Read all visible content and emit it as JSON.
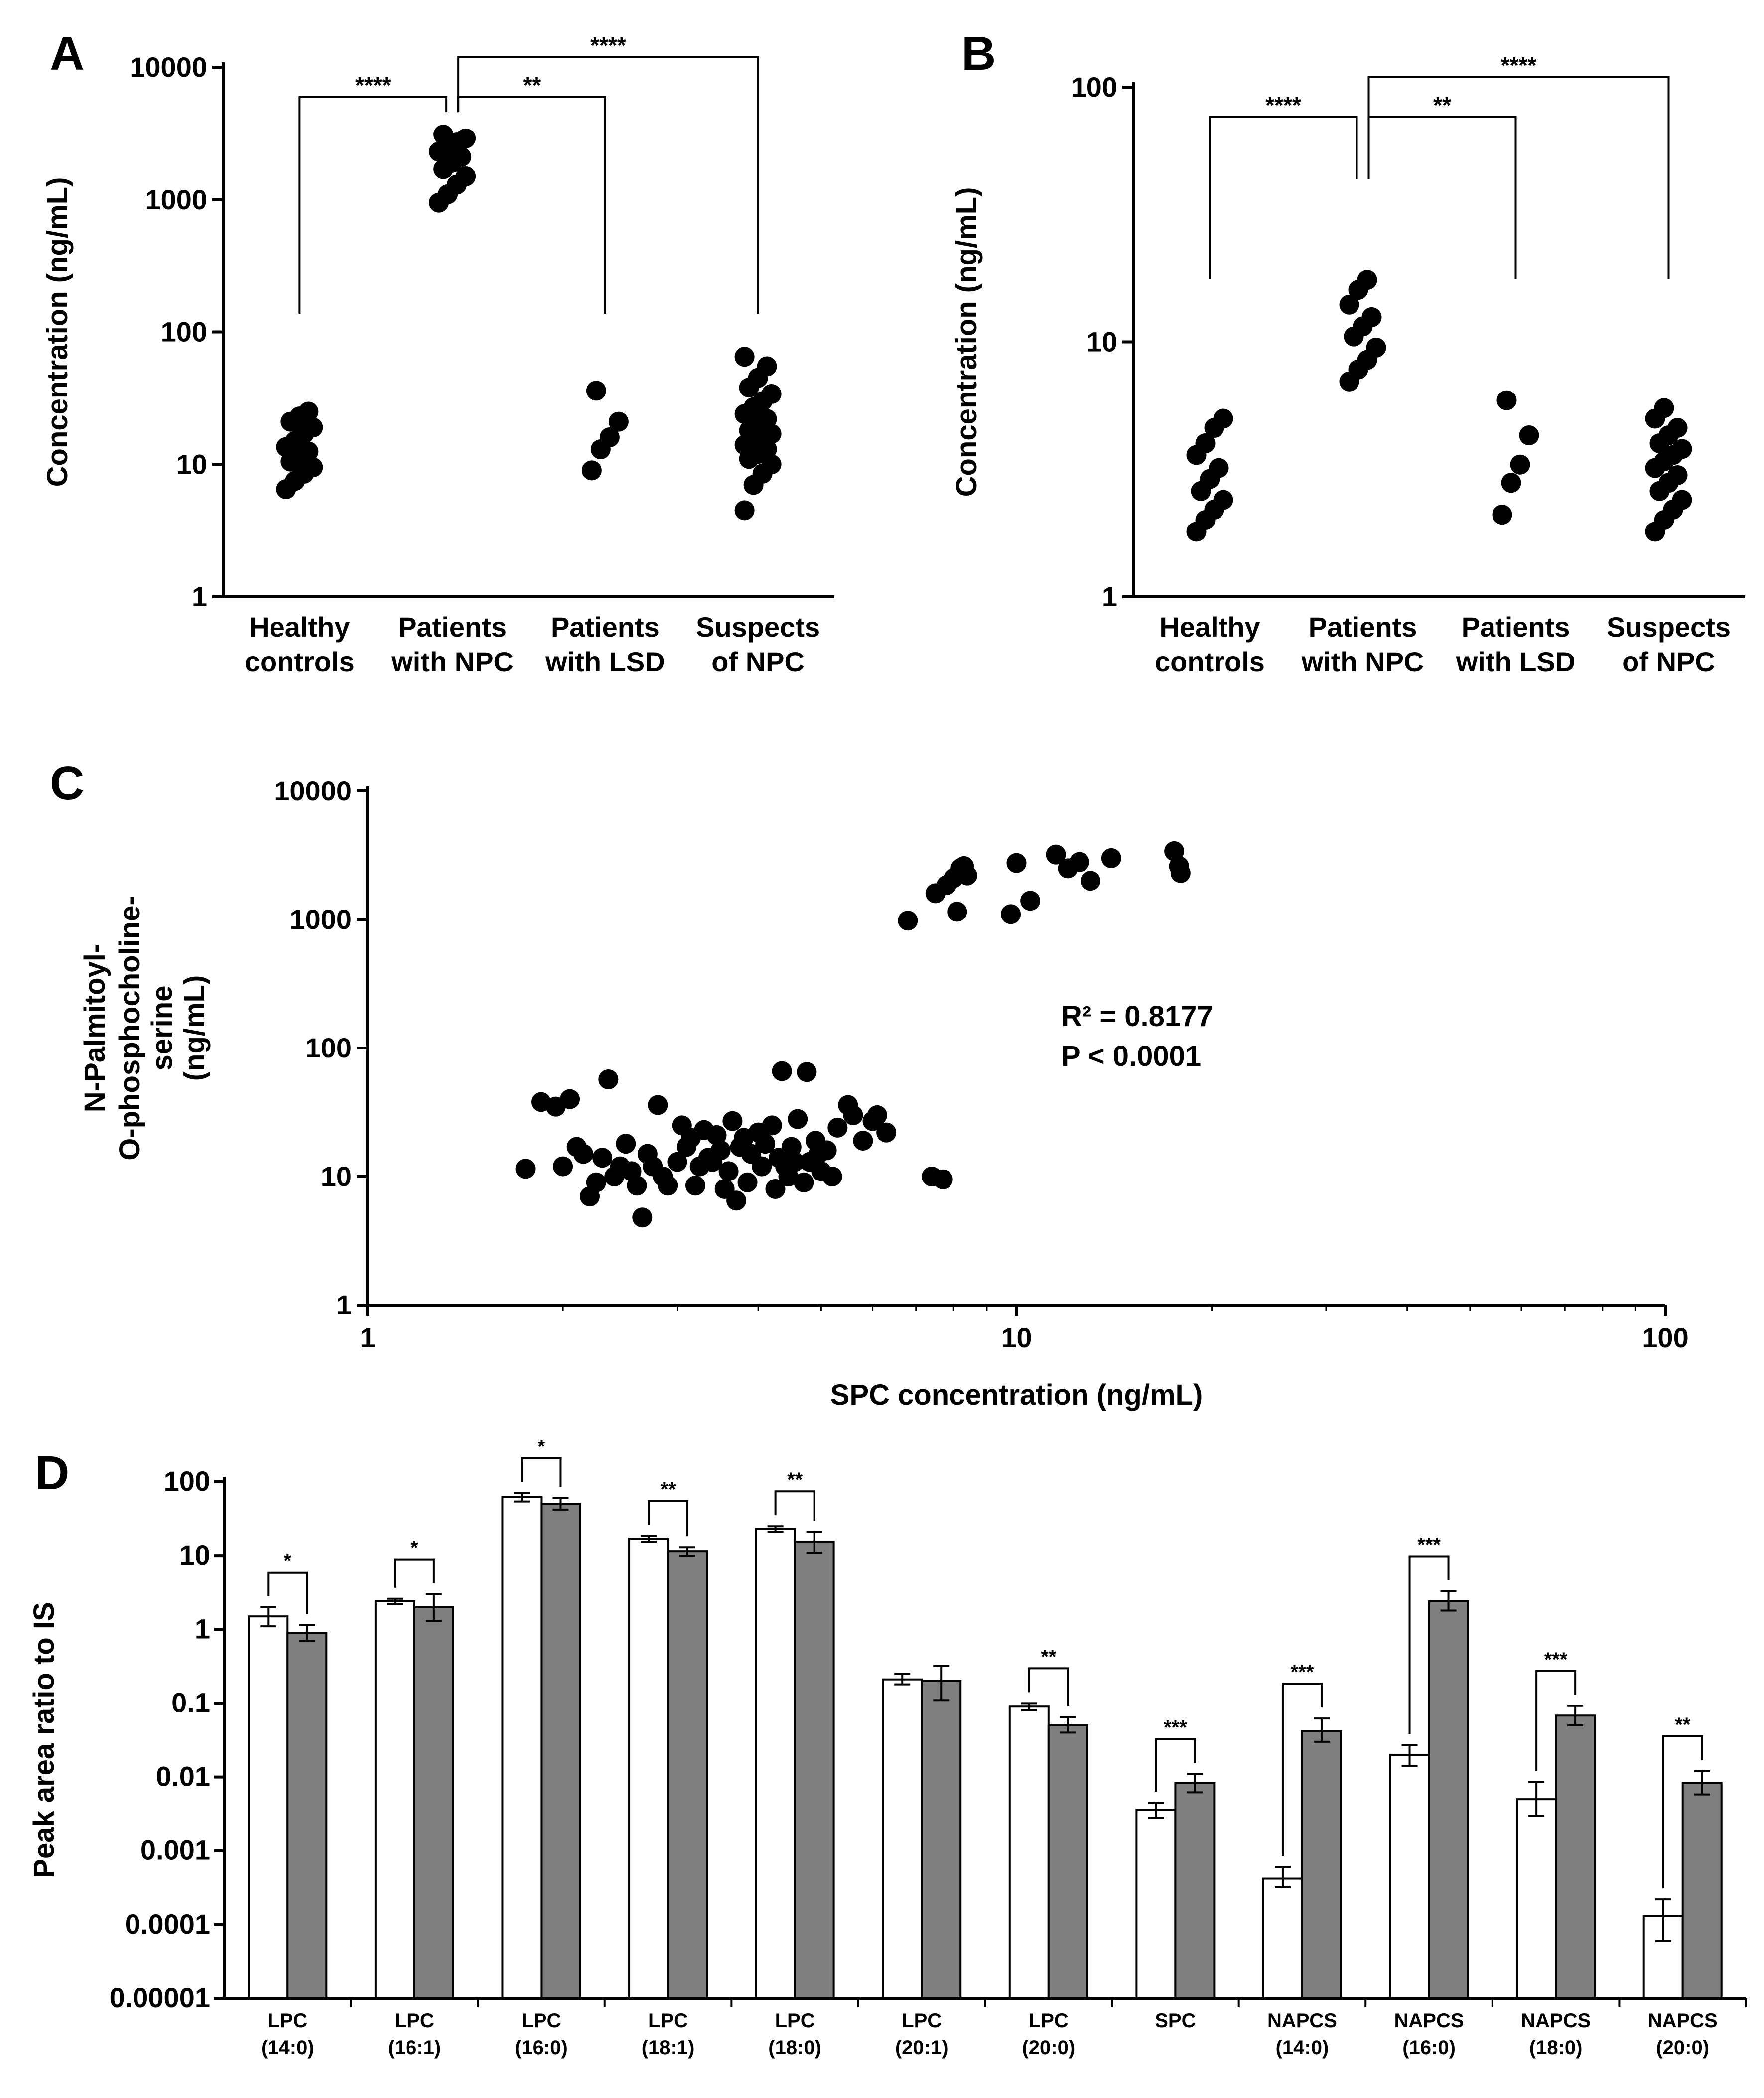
{
  "chart_data": [
    {
      "panel": "A",
      "type": "scatter",
      "ylabel": "Concentration (ng/mL)",
      "yscale": "log",
      "ylim": [
        1,
        10000
      ],
      "yticks": [
        "1",
        "10",
        "100",
        "1000",
        "10000"
      ],
      "categories": [
        [
          "Healthy",
          "controls"
        ],
        [
          "Patients",
          "with NPC"
        ],
        [
          "Patients",
          "with LSD"
        ],
        [
          "Suspects",
          "of NPC"
        ]
      ],
      "groups": [
        [
          6.5,
          7.5,
          8.5,
          9.5,
          10.5,
          11.5,
          12.5,
          13.5,
          15,
          17,
          19,
          21,
          23,
          25
        ],
        [
          950,
          1100,
          1300,
          1500,
          1700,
          1900,
          2100,
          2300,
          2500,
          2700,
          2900,
          3100
        ],
        [
          9,
          13,
          16,
          21,
          36
        ],
        [
          4.5,
          7,
          8.5,
          10,
          11,
          12,
          13,
          14,
          15,
          16,
          17,
          18,
          20,
          22,
          24,
          27,
          30,
          34,
          38,
          45,
          55,
          65
        ]
      ],
      "comparisons": [
        {
          "from": 0,
          "to": 1,
          "label": "****",
          "level": 0
        },
        {
          "from": 1,
          "to": 2,
          "label": "**",
          "level": 0
        },
        {
          "from": 1,
          "to": 3,
          "label": "****",
          "level": 1
        }
      ]
    },
    {
      "panel": "B",
      "type": "scatter",
      "ylabel": "Concentration (ng/mL)",
      "yscale": "log",
      "ylim": [
        1,
        100
      ],
      "yticks": [
        "1",
        "10",
        "100"
      ],
      "categories": [
        [
          "Healthy",
          "controls"
        ],
        [
          "Patients",
          "with NPC"
        ],
        [
          "Patients",
          "with LSD"
        ],
        [
          "Suspects",
          "of NPC"
        ]
      ],
      "groups": [
        [
          1.8,
          2.0,
          2.2,
          2.4,
          2.6,
          2.9,
          3.2,
          3.6,
          4.0,
          4.6,
          5.0
        ],
        [
          7.0,
          7.8,
          8.5,
          9.5,
          10.5,
          11.5,
          12.5,
          14,
          16,
          17.5
        ],
        [
          2.1,
          2.8,
          3.3,
          4.3,
          5.9
        ],
        [
          1.8,
          2.0,
          2.2,
          2.4,
          2.6,
          2.8,
          3.0,
          3.2,
          3.4,
          3.6,
          3.8,
          4.0,
          4.3,
          4.6,
          5.0,
          5.5
        ]
      ],
      "comparisons": [
        {
          "from": 0,
          "to": 1,
          "label": "****",
          "level": 0
        },
        {
          "from": 1,
          "to": 2,
          "label": "**",
          "level": 0
        },
        {
          "from": 1,
          "to": 3,
          "label": "****",
          "level": 1
        }
      ]
    },
    {
      "panel": "C",
      "type": "scatter",
      "xlabel": "SPC concentration (ng/mL)",
      "ylabel": [
        "N-Palmitoyl-",
        "O-phosphocholine-",
        "serine",
        "(ng/mL)"
      ],
      "xscale": "log",
      "yscale": "log",
      "xlim": [
        1,
        100
      ],
      "ylim": [
        1,
        10000
      ],
      "xticks": [
        "1",
        "10",
        "100"
      ],
      "yticks": [
        "1",
        "10",
        "100",
        "1000",
        "10000"
      ],
      "annotations": [
        "R² = 0.8177",
        "P < 0.0001"
      ],
      "points": [
        [
          1.75,
          11.5
        ],
        [
          1.85,
          38
        ],
        [
          1.95,
          35
        ],
        [
          2.0,
          12
        ],
        [
          2.05,
          40
        ],
        [
          2.1,
          17
        ],
        [
          2.15,
          15
        ],
        [
          2.2,
          7
        ],
        [
          2.3,
          14
        ],
        [
          2.35,
          57
        ],
        [
          2.4,
          10
        ],
        [
          2.45,
          12
        ],
        [
          2.5,
          18
        ],
        [
          2.55,
          11
        ],
        [
          2.6,
          8.5
        ],
        [
          2.65,
          4.8
        ],
        [
          2.7,
          15
        ],
        [
          2.75,
          12
        ],
        [
          2.8,
          36
        ],
        [
          2.85,
          10
        ],
        [
          2.9,
          8.5
        ],
        [
          3.0,
          13
        ],
        [
          3.1,
          17
        ],
        [
          3.2,
          8.5
        ],
        [
          3.3,
          23
        ],
        [
          3.4,
          13
        ],
        [
          3.5,
          16
        ],
        [
          3.6,
          11
        ],
        [
          3.7,
          6.5
        ],
        [
          3.8,
          20
        ],
        [
          3.9,
          15
        ],
        [
          4.0,
          22
        ],
        [
          4.1,
          18
        ],
        [
          4.2,
          25
        ],
        [
          4.3,
          14
        ],
        [
          4.4,
          12
        ],
        [
          4.5,
          17
        ],
        [
          4.6,
          28
        ],
        [
          4.7,
          9
        ],
        [
          4.8,
          13
        ],
        [
          4.9,
          19
        ],
        [
          5.0,
          11
        ],
        [
          5.1,
          16
        ],
        [
          5.2,
          10
        ],
        [
          3.05,
          25
        ],
        [
          3.25,
          12
        ],
        [
          3.45,
          21
        ],
        [
          3.65,
          27
        ],
        [
          3.85,
          9
        ],
        [
          4.05,
          12
        ],
        [
          4.25,
          8
        ],
        [
          4.35,
          66
        ],
        [
          4.45,
          10
        ],
        [
          4.55,
          13
        ],
        [
          4.75,
          65
        ],
        [
          4.95,
          15
        ],
        [
          5.3,
          24
        ],
        [
          5.5,
          36
        ],
        [
          5.6,
          30
        ],
        [
          5.8,
          19
        ],
        [
          6.0,
          27
        ],
        [
          6.1,
          30
        ],
        [
          6.3,
          22
        ],
        [
          7.4,
          10
        ],
        [
          7.7,
          9.5
        ],
        [
          3.15,
          20
        ],
        [
          3.35,
          14
        ],
        [
          3.55,
          8
        ],
        [
          2.25,
          9
        ],
        [
          3.75,
          17
        ],
        [
          6.8,
          980
        ],
        [
          7.5,
          1600
        ],
        [
          7.8,
          1850
        ],
        [
          8.0,
          2100
        ],
        [
          8.2,
          2500
        ],
        [
          8.3,
          2600
        ],
        [
          8.4,
          2200
        ],
        [
          8.1,
          1150
        ],
        [
          10.0,
          2750
        ],
        [
          10.5,
          1400
        ],
        [
          9.8,
          1100
        ],
        [
          11.5,
          3200
        ],
        [
          12.0,
          2500
        ],
        [
          12.5,
          2800
        ],
        [
          13.0,
          2000
        ],
        [
          14.0,
          3000
        ],
        [
          17.5,
          3400
        ],
        [
          17.8,
          2600
        ],
        [
          17.9,
          2300
        ]
      ]
    },
    {
      "panel": "D",
      "type": "bar",
      "ylabel": "Peak area ratio to IS",
      "yscale": "log",
      "ylim": [
        1e-05,
        100
      ],
      "yticks": [
        "0.00001",
        "0.0001",
        "0.001",
        "0.01",
        "0.1",
        "1",
        "10",
        "100"
      ],
      "categories": [
        [
          "LPC",
          "(14:0)"
        ],
        [
          "LPC",
          "(16:1)"
        ],
        [
          "LPC",
          "(16:0)"
        ],
        [
          "LPC",
          "(18:1)"
        ],
        [
          "LPC",
          "(18:0)"
        ],
        [
          "LPC",
          "(20:1)"
        ],
        [
          "LPC",
          "(20:0)"
        ],
        [
          "SPC",
          ""
        ],
        [
          "NAPCS",
          "(14:0)"
        ],
        [
          "NAPCS",
          "(16:0)"
        ],
        [
          "NAPCS",
          "(18:0)"
        ],
        [
          "NAPCS",
          "(20:0)"
        ]
      ],
      "series": [
        {
          "color": "#ffffff",
          "values": [
            1.5,
            2.4,
            62,
            17,
            23,
            0.21,
            0.09,
            0.0036,
            0.00042,
            0.02,
            0.005,
            0.00013
          ],
          "err_high": [
            2.0,
            2.6,
            70,
            18.5,
            25,
            0.25,
            0.1,
            0.0045,
            0.0006,
            0.027,
            0.0085,
            0.00022
          ],
          "err_low": [
            1.1,
            2.2,
            54,
            15.5,
            21,
            0.18,
            0.08,
            0.0028,
            0.00032,
            0.014,
            0.003,
            6e-05
          ]
        },
        {
          "color": "#7f7f7f",
          "values": [
            0.9,
            2.0,
            50,
            11.5,
            15.5,
            0.2,
            0.05,
            0.0083,
            0.042,
            2.4,
            0.068,
            0.0083
          ],
          "err_high": [
            1.15,
            3.0,
            60,
            13,
            21,
            0.32,
            0.065,
            0.011,
            0.062,
            3.3,
            0.092,
            0.012
          ],
          "err_low": [
            0.7,
            1.3,
            42,
            10,
            11,
            0.11,
            0.04,
            0.0062,
            0.03,
            1.8,
            0.05,
            0.0058
          ]
        }
      ],
      "significance": [
        {
          "index": 0,
          "label": "*"
        },
        {
          "index": 1,
          "label": "*"
        },
        {
          "index": 2,
          "label": "*"
        },
        {
          "index": 3,
          "label": "**"
        },
        {
          "index": 4,
          "label": "**"
        },
        {
          "index": 6,
          "label": "**"
        },
        {
          "index": 7,
          "label": "***"
        },
        {
          "index": 8,
          "label": "***"
        },
        {
          "index": 9,
          "label": "***"
        },
        {
          "index": 10,
          "label": "***"
        },
        {
          "index": 11,
          "label": "**"
        }
      ]
    }
  ]
}
